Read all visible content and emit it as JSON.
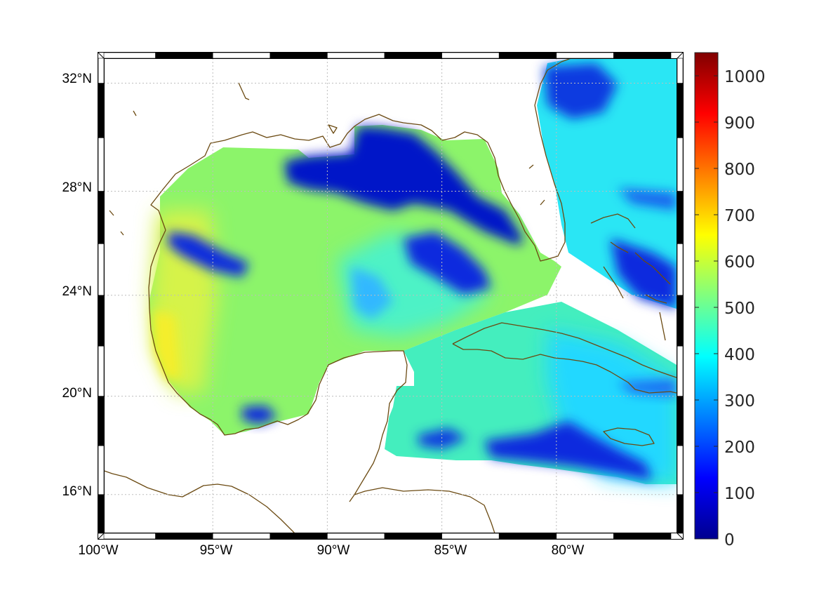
{
  "map": {
    "lon_range": [
      -100,
      -75
    ],
    "lat_range": [
      14.4,
      32.9
    ],
    "lon_ticks": [
      {
        "value": -100,
        "label": "100°W"
      },
      {
        "value": -95,
        "label": "95°W"
      },
      {
        "value": -90,
        "label": "90°W"
      },
      {
        "value": -85,
        "label": "85°W"
      },
      {
        "value": -80,
        "label": "80°W"
      }
    ],
    "lat_ticks": [
      {
        "value": 32,
        "label": "32°N"
      },
      {
        "value": 28,
        "label": "28°N"
      },
      {
        "value": 24,
        "label": "24°N"
      },
      {
        "value": 20,
        "label": "20°N"
      },
      {
        "value": 16,
        "label": "16°N"
      }
    ],
    "grid": true,
    "coastline_color": "#6b4a12",
    "colormap": "jet"
  },
  "colorbar": {
    "range": [
      0,
      1050
    ],
    "ticks": [
      {
        "value": 0,
        "label": "0"
      },
      {
        "value": 100,
        "label": "100"
      },
      {
        "value": 200,
        "label": "200"
      },
      {
        "value": 300,
        "label": "300"
      },
      {
        "value": 400,
        "label": "400"
      },
      {
        "value": 500,
        "label": "500"
      },
      {
        "value": 600,
        "label": "600"
      },
      {
        "value": 700,
        "label": "700"
      },
      {
        "value": 800,
        "label": "800"
      },
      {
        "value": 900,
        "label": "900"
      },
      {
        "value": 1000,
        "label": "1000"
      }
    ]
  }
}
